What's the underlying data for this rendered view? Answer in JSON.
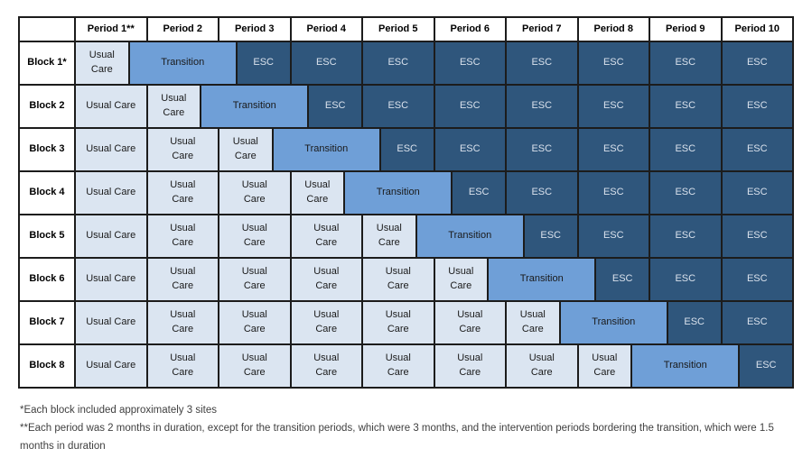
{
  "colors": {
    "page_bg": "#ffffff",
    "usual_care_bg": "#dbe5f1",
    "transition_bg": "#6f9fd7",
    "esc_bg": "#2f567c",
    "esc_text": "#d9e1ec",
    "cell_text": "#1a1a1a",
    "border": "#1c1c1c",
    "footnote_text": "#3f3f3f"
  },
  "table": {
    "corner_label": "",
    "period_headers": [
      "Period 1**",
      "Period 2",
      "Period 3",
      "Period 4",
      "Period 5",
      "Period 6",
      "Period 7",
      "Period 8",
      "Period 9",
      "Period 10"
    ],
    "blocks": [
      {
        "label": "Block 1*",
        "cells": [
          {
            "type": "usual",
            "months": 1.5,
            "lines": [
              "Usual",
              "Care"
            ]
          },
          {
            "type": "transition",
            "months": 3,
            "lines": [
              "Transition"
            ]
          },
          {
            "type": "esc",
            "months": 1.5,
            "lines": [
              "ESC"
            ]
          },
          {
            "type": "esc",
            "months": 2,
            "lines": [
              "ESC"
            ]
          },
          {
            "type": "esc",
            "months": 2,
            "lines": [
              "ESC"
            ]
          },
          {
            "type": "esc",
            "months": 2,
            "lines": [
              "ESC"
            ]
          },
          {
            "type": "esc",
            "months": 2,
            "lines": [
              "ESC"
            ]
          },
          {
            "type": "esc",
            "months": 2,
            "lines": [
              "ESC"
            ]
          },
          {
            "type": "esc",
            "months": 2,
            "lines": [
              "ESC"
            ]
          },
          {
            "type": "esc",
            "months": 2,
            "lines": [
              "ESC"
            ]
          }
        ]
      },
      {
        "label": "Block 2",
        "cells": [
          {
            "type": "usual",
            "months": 2,
            "lines": [
              "Usual Care"
            ]
          },
          {
            "type": "usual",
            "months": 1.5,
            "lines": [
              "Usual",
              "Care"
            ]
          },
          {
            "type": "transition",
            "months": 3,
            "lines": [
              "Transition"
            ]
          },
          {
            "type": "esc",
            "months": 1.5,
            "lines": [
              "ESC"
            ]
          },
          {
            "type": "esc",
            "months": 2,
            "lines": [
              "ESC"
            ]
          },
          {
            "type": "esc",
            "months": 2,
            "lines": [
              "ESC"
            ]
          },
          {
            "type": "esc",
            "months": 2,
            "lines": [
              "ESC"
            ]
          },
          {
            "type": "esc",
            "months": 2,
            "lines": [
              "ESC"
            ]
          },
          {
            "type": "esc",
            "months": 2,
            "lines": [
              "ESC"
            ]
          },
          {
            "type": "esc",
            "months": 2,
            "lines": [
              "ESC"
            ]
          }
        ]
      },
      {
        "label": "Block 3",
        "cells": [
          {
            "type": "usual",
            "months": 2,
            "lines": [
              "Usual Care"
            ]
          },
          {
            "type": "usual",
            "months": 2,
            "lines": [
              "Usual",
              "Care"
            ]
          },
          {
            "type": "usual",
            "months": 1.5,
            "lines": [
              "Usual",
              "Care"
            ]
          },
          {
            "type": "transition",
            "months": 3,
            "lines": [
              "Transition"
            ]
          },
          {
            "type": "esc",
            "months": 1.5,
            "lines": [
              "ESC"
            ]
          },
          {
            "type": "esc",
            "months": 2,
            "lines": [
              "ESC"
            ]
          },
          {
            "type": "esc",
            "months": 2,
            "lines": [
              "ESC"
            ]
          },
          {
            "type": "esc",
            "months": 2,
            "lines": [
              "ESC"
            ]
          },
          {
            "type": "esc",
            "months": 2,
            "lines": [
              "ESC"
            ]
          },
          {
            "type": "esc",
            "months": 2,
            "lines": [
              "ESC"
            ]
          }
        ]
      },
      {
        "label": "Block 4",
        "cells": [
          {
            "type": "usual",
            "months": 2,
            "lines": [
              "Usual Care"
            ]
          },
          {
            "type": "usual",
            "months": 2,
            "lines": [
              "Usual",
              "Care"
            ]
          },
          {
            "type": "usual",
            "months": 2,
            "lines": [
              "Usual",
              "Care"
            ]
          },
          {
            "type": "usual",
            "months": 1.5,
            "lines": [
              "Usual",
              "Care"
            ]
          },
          {
            "type": "transition",
            "months": 3,
            "lines": [
              "Transition"
            ]
          },
          {
            "type": "esc",
            "months": 1.5,
            "lines": [
              "ESC"
            ]
          },
          {
            "type": "esc",
            "months": 2,
            "lines": [
              "ESC"
            ]
          },
          {
            "type": "esc",
            "months": 2,
            "lines": [
              "ESC"
            ]
          },
          {
            "type": "esc",
            "months": 2,
            "lines": [
              "ESC"
            ]
          },
          {
            "type": "esc",
            "months": 2,
            "lines": [
              "ESC"
            ]
          }
        ]
      },
      {
        "label": "Block 5",
        "cells": [
          {
            "type": "usual",
            "months": 2,
            "lines": [
              "Usual Care"
            ]
          },
          {
            "type": "usual",
            "months": 2,
            "lines": [
              "Usual",
              "Care"
            ]
          },
          {
            "type": "usual",
            "months": 2,
            "lines": [
              "Usual",
              "Care"
            ]
          },
          {
            "type": "usual",
            "months": 2,
            "lines": [
              "Usual",
              "Care"
            ]
          },
          {
            "type": "usual",
            "months": 1.5,
            "lines": [
              "Usual",
              "Care"
            ]
          },
          {
            "type": "transition",
            "months": 3,
            "lines": [
              "Transition"
            ]
          },
          {
            "type": "esc",
            "months": 1.5,
            "lines": [
              "ESC"
            ]
          },
          {
            "type": "esc",
            "months": 2,
            "lines": [
              "ESC"
            ]
          },
          {
            "type": "esc",
            "months": 2,
            "lines": [
              "ESC"
            ]
          },
          {
            "type": "esc",
            "months": 2,
            "lines": [
              "ESC"
            ]
          }
        ]
      },
      {
        "label": "Block 6",
        "cells": [
          {
            "type": "usual",
            "months": 2,
            "lines": [
              "Usual Care"
            ]
          },
          {
            "type": "usual",
            "months": 2,
            "lines": [
              "Usual",
              "Care"
            ]
          },
          {
            "type": "usual",
            "months": 2,
            "lines": [
              "Usual",
              "Care"
            ]
          },
          {
            "type": "usual",
            "months": 2,
            "lines": [
              "Usual",
              "Care"
            ]
          },
          {
            "type": "usual",
            "months": 2,
            "lines": [
              "Usual",
              "Care"
            ]
          },
          {
            "type": "usual",
            "months": 1.5,
            "lines": [
              "Usual",
              "Care"
            ]
          },
          {
            "type": "transition",
            "months": 3,
            "lines": [
              "Transition"
            ]
          },
          {
            "type": "esc",
            "months": 1.5,
            "lines": [
              "ESC"
            ]
          },
          {
            "type": "esc",
            "months": 2,
            "lines": [
              "ESC"
            ]
          },
          {
            "type": "esc",
            "months": 2,
            "lines": [
              "ESC"
            ]
          }
        ]
      },
      {
        "label": "Block 7",
        "cells": [
          {
            "type": "usual",
            "months": 2,
            "lines": [
              "Usual Care"
            ]
          },
          {
            "type": "usual",
            "months": 2,
            "lines": [
              "Usual",
              "Care"
            ]
          },
          {
            "type": "usual",
            "months": 2,
            "lines": [
              "Usual",
              "Care"
            ]
          },
          {
            "type": "usual",
            "months": 2,
            "lines": [
              "Usual",
              "Care"
            ]
          },
          {
            "type": "usual",
            "months": 2,
            "lines": [
              "Usual",
              "Care"
            ]
          },
          {
            "type": "usual",
            "months": 2,
            "lines": [
              "Usual",
              "Care"
            ]
          },
          {
            "type": "usual",
            "months": 1.5,
            "lines": [
              "Usual",
              "Care"
            ]
          },
          {
            "type": "transition",
            "months": 3,
            "lines": [
              "Transition"
            ]
          },
          {
            "type": "esc",
            "months": 1.5,
            "lines": [
              "ESC"
            ]
          },
          {
            "type": "esc",
            "months": 2,
            "lines": [
              "ESC"
            ]
          }
        ]
      },
      {
        "label": "Block 8",
        "cells": [
          {
            "type": "usual",
            "months": 2,
            "lines": [
              "Usual Care"
            ]
          },
          {
            "type": "usual",
            "months": 2,
            "lines": [
              "Usual",
              "Care"
            ]
          },
          {
            "type": "usual",
            "months": 2,
            "lines": [
              "Usual",
              "Care"
            ]
          },
          {
            "type": "usual",
            "months": 2,
            "lines": [
              "Usual",
              "Care"
            ]
          },
          {
            "type": "usual",
            "months": 2,
            "lines": [
              "Usual",
              "Care"
            ]
          },
          {
            "type": "usual",
            "months": 2,
            "lines": [
              "Usual",
              "Care"
            ]
          },
          {
            "type": "usual",
            "months": 2,
            "lines": [
              "Usual",
              "Care"
            ]
          },
          {
            "type": "usual",
            "months": 1.5,
            "lines": [
              "Usual",
              "Care"
            ]
          },
          {
            "type": "transition",
            "months": 3,
            "lines": [
              "Transition"
            ]
          },
          {
            "type": "esc",
            "months": 1.5,
            "lines": [
              "ESC"
            ]
          }
        ]
      }
    ]
  },
  "footnotes": [
    "*Each block included approximately 3 sites",
    "**Each period was 2 months in duration, except for the transition periods, which were 3 months, and the intervention periods bordering the transition, which were 1.5 months in duration"
  ]
}
